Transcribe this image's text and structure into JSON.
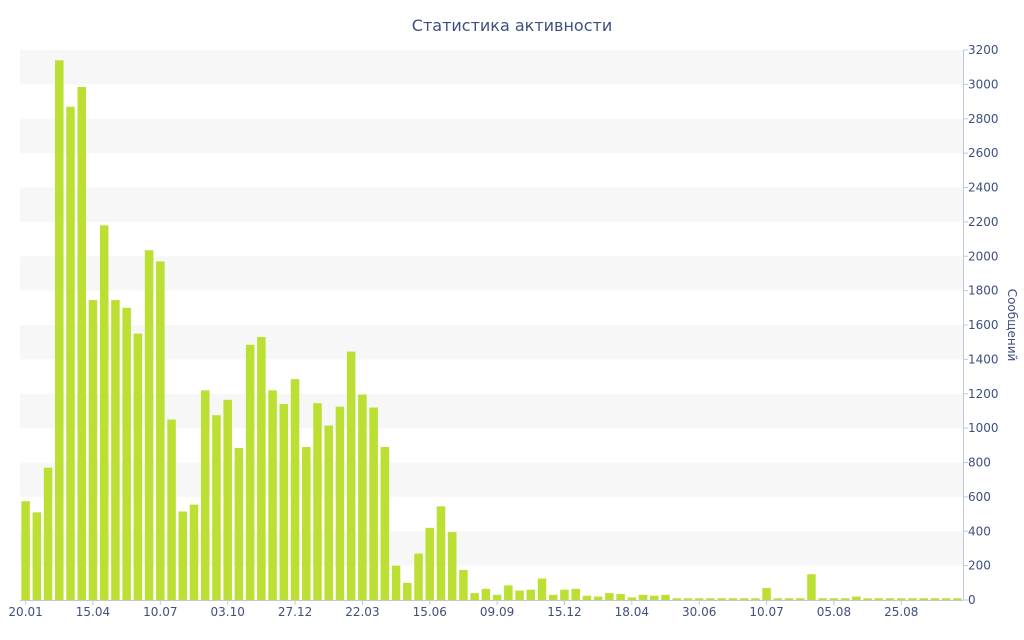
{
  "chart_data": {
    "type": "bar",
    "title": "Статистика активности",
    "ylabel": "Сообщений",
    "xlabel": "",
    "ylim": [
      0,
      3200
    ],
    "y_ticks": [
      0,
      200,
      400,
      600,
      800,
      1000,
      1200,
      1400,
      1600,
      1800,
      2000,
      2200,
      2400,
      2600,
      2800,
      3000,
      3200
    ],
    "y_axis_position": "right",
    "grid": "horizontal alternating bands",
    "bar_color": "#bbe033",
    "band_color": "#f7f7f7",
    "text_color": "#3f4f7f",
    "x_tick_labels": [
      {
        "index": 0,
        "label": "20.01"
      },
      {
        "index": 6,
        "label": "15.04"
      },
      {
        "index": 12,
        "label": "10.07"
      },
      {
        "index": 18,
        "label": "03.10"
      },
      {
        "index": 24,
        "label": "27.12"
      },
      {
        "index": 30,
        "label": "22.03"
      },
      {
        "index": 36,
        "label": "15.06"
      },
      {
        "index": 42,
        "label": "09.09"
      },
      {
        "index": 48,
        "label": "15.12"
      },
      {
        "index": 54,
        "label": "18.04"
      },
      {
        "index": 60,
        "label": "30.06"
      },
      {
        "index": 66,
        "label": "10.07"
      },
      {
        "index": 72,
        "label": "05.08"
      },
      {
        "index": 78,
        "label": "25.08"
      }
    ],
    "values": [
      575,
      510,
      770,
      3140,
      2870,
      2985,
      1745,
      2180,
      1745,
      1700,
      1550,
      2035,
      1970,
      1050,
      515,
      555,
      1220,
      1075,
      1165,
      885,
      1485,
      1530,
      1220,
      1140,
      1285,
      890,
      1145,
      1015,
      1125,
      1445,
      1195,
      1120,
      890,
      200,
      100,
      270,
      420,
      545,
      395,
      175,
      40,
      65,
      30,
      85,
      55,
      60,
      125,
      30,
      60,
      65,
      25,
      20,
      40,
      35,
      15,
      30,
      25,
      30,
      10,
      10,
      10,
      10,
      10,
      10,
      10,
      10,
      70,
      10,
      10,
      10,
      150,
      10,
      10,
      10,
      20,
      10,
      10,
      10,
      10,
      10,
      10,
      10,
      10,
      10
    ]
  }
}
